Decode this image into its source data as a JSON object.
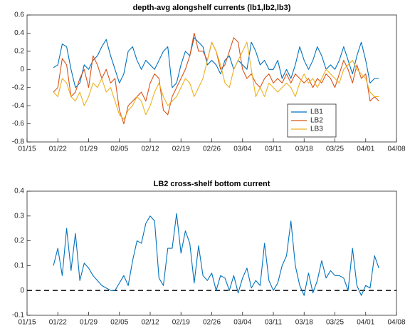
{
  "chart_data": [
    {
      "type": "line",
      "title": "depth-avg alongshelf currents (lb1,lb2,lb3)",
      "x": [
        21,
        22,
        23,
        24,
        25,
        26,
        27,
        28,
        29,
        30,
        31,
        32,
        33,
        34,
        35,
        36,
        37,
        38,
        39,
        40,
        41,
        42,
        43,
        44,
        45,
        46,
        47,
        48,
        49,
        50,
        51,
        52,
        53,
        54,
        55,
        56,
        57,
        58,
        59,
        60,
        61,
        62,
        63,
        64,
        65,
        66,
        67,
        68,
        69,
        70,
        71,
        72,
        73,
        74,
        75,
        76,
        77,
        78,
        79,
        80,
        81,
        82,
        83,
        84,
        85,
        86,
        87,
        88,
        89,
        90,
        91,
        92,
        93,
        94,
        95
      ],
      "series": [
        {
          "name": "LB1",
          "color": "#0072bd",
          "values": [
            0.02,
            0.05,
            0.28,
            0.25,
            0.0,
            -0.2,
            -0.15,
            0.05,
            0.0,
            0.1,
            0.15,
            0.25,
            0.33,
            0.15,
            0.0,
            -0.15,
            -0.05,
            0.2,
            0.25,
            0.1,
            0.0,
            0.1,
            0.05,
            0.0,
            0.1,
            0.2,
            0.25,
            -0.2,
            -0.15,
            0.05,
            0.2,
            0.15,
            0.35,
            0.3,
            0.25,
            0.05,
            0.1,
            0.05,
            -0.05,
            0.1,
            0.15,
            0.0,
            0.1,
            0.05,
            0.0,
            0.3,
            0.2,
            0.05,
            0.1,
            0.0,
            0.0,
            0.1,
            -0.1,
            0.0,
            -0.1,
            0.05,
            0.25,
            0.1,
            0.0,
            0.1,
            0.25,
            0.15,
            0.0,
            0.05,
            0.0,
            0.1,
            0.25,
            0.1,
            -0.05,
            0.15,
            0.3,
            0.1,
            -0.15,
            -0.1,
            -0.1
          ]
        },
        {
          "name": "LB2",
          "color": "#d95319",
          "values": [
            -0.25,
            -0.2,
            0.12,
            0.05,
            -0.3,
            -0.25,
            -0.1,
            0.0,
            -0.2,
            0.15,
            0.05,
            -0.1,
            0.0,
            -0.15,
            -0.1,
            -0.45,
            -0.6,
            -0.4,
            -0.35,
            -0.3,
            -0.25,
            -0.35,
            -0.15,
            -0.05,
            -0.1,
            -0.45,
            -0.5,
            -0.3,
            -0.2,
            -0.1,
            0.0,
            0.15,
            0.4,
            0.2,
            0.2,
            0.1,
            0.3,
            0.2,
            0.0,
            0.05,
            0.2,
            0.35,
            0.3,
            0.0,
            -0.1,
            -0.05,
            -0.15,
            -0.2,
            -0.1,
            -0.05,
            -0.15,
            -0.1,
            -0.15,
            -0.05,
            -0.15,
            -0.05,
            -0.1,
            -0.15,
            -0.1,
            -0.2,
            -0.1,
            -0.15,
            -0.05,
            -0.1,
            -0.2,
            -0.05,
            0.1,
            0.0,
            -0.15,
            0.05,
            -0.1,
            -0.05,
            -0.35,
            -0.3,
            -0.35
          ]
        },
        {
          "name": "LB3",
          "color": "#edb120",
          "values": [
            -0.25,
            -0.3,
            -0.1,
            -0.15,
            -0.3,
            -0.35,
            -0.25,
            -0.4,
            -0.3,
            -0.15,
            -0.2,
            -0.1,
            -0.25,
            -0.2,
            -0.35,
            -0.5,
            -0.55,
            -0.45,
            -0.4,
            -0.3,
            -0.35,
            -0.5,
            -0.4,
            -0.25,
            -0.15,
            -0.3,
            -0.4,
            -0.35,
            -0.3,
            -0.2,
            -0.1,
            -0.15,
            -0.3,
            -0.2,
            -0.1,
            0.1,
            0.3,
            0.2,
            0.05,
            -0.15,
            -0.2,
            0.0,
            0.1,
            0.2,
            0.3,
            0.0,
            -0.3,
            -0.2,
            -0.3,
            -0.15,
            -0.2,
            -0.25,
            -0.2,
            -0.15,
            -0.2,
            -0.3,
            -0.15,
            -0.05,
            -0.15,
            -0.1,
            -0.2,
            -0.1,
            0.0,
            -0.05,
            -0.1,
            -0.15,
            0.0,
            0.05,
            0.1,
            0.0,
            -0.05,
            -0.1,
            -0.25,
            -0.3,
            -0.3
          ]
        }
      ],
      "xlim": [
        15,
        99
      ],
      "xticks": [
        {
          "value": 15,
          "label": "01/15"
        },
        {
          "value": 22,
          "label": "01/22"
        },
        {
          "value": 29,
          "label": "01/29"
        },
        {
          "value": 36,
          "label": "02/05"
        },
        {
          "value": 43,
          "label": "02/12"
        },
        {
          "value": 50,
          "label": "02/19"
        },
        {
          "value": 57,
          "label": "02/26"
        },
        {
          "value": 64,
          "label": "03/04"
        },
        {
          "value": 71,
          "label": "03/11"
        },
        {
          "value": 78,
          "label": "03/18"
        },
        {
          "value": 85,
          "label": "03/25"
        },
        {
          "value": 92,
          "label": "04/01"
        },
        {
          "value": 99,
          "label": "04/08"
        }
      ],
      "ylim": [
        -0.8,
        0.6
      ],
      "yticks": [
        -0.8,
        -0.6,
        -0.4,
        -0.2,
        0,
        0.2,
        0.4,
        0.6
      ],
      "legend": "lower right"
    },
    {
      "type": "line",
      "title": "LB2 cross-shelf bottom current",
      "x": [
        21,
        22,
        23,
        24,
        25,
        26,
        27,
        28,
        29,
        30,
        31,
        32,
        33,
        34,
        35,
        36,
        37,
        38,
        39,
        40,
        41,
        42,
        43,
        44,
        45,
        46,
        47,
        48,
        49,
        50,
        51,
        52,
        53,
        54,
        55,
        56,
        57,
        58,
        59,
        60,
        61,
        62,
        63,
        64,
        65,
        66,
        67,
        68,
        69,
        70,
        71,
        72,
        73,
        74,
        75,
        76,
        77,
        78,
        79,
        80,
        81,
        82,
        83,
        84,
        85,
        86,
        87,
        88,
        89,
        90,
        91,
        92,
        93,
        94,
        95
      ],
      "series": [
        {
          "color": "#0072bd",
          "values": [
            0.1,
            0.17,
            0.06,
            0.25,
            0.08,
            0.23,
            0.04,
            0.11,
            0.09,
            0.06,
            0.04,
            0.02,
            0.01,
            0.0,
            0.0,
            0.03,
            0.06,
            0.02,
            0.12,
            0.2,
            0.19,
            0.27,
            0.3,
            0.28,
            0.05,
            0.02,
            0.17,
            0.17,
            0.31,
            0.15,
            0.24,
            0.19,
            0.03,
            0.18,
            0.06,
            0.04,
            0.07,
            0.0,
            0.06,
            0.05,
            0.0,
            0.06,
            -0.01,
            0.05,
            0.09,
            0.01,
            0.04,
            0.02,
            0.19,
            0.04,
            0.0,
            0.03,
            0.1,
            0.14,
            0.28,
            0.1,
            0.02,
            -0.02,
            0.07,
            -0.01,
            0.04,
            0.12,
            0.05,
            0.08,
            0.06,
            0.06,
            0.05,
            0.0,
            0.17,
            0.02,
            -0.02,
            0.02,
            0.01,
            0.14,
            0.09
          ]
        }
      ],
      "hline": 0,
      "xlim": [
        15,
        99
      ],
      "xticks": [
        {
          "value": 15,
          "label": "01/15"
        },
        {
          "value": 22,
          "label": "01/22"
        },
        {
          "value": 29,
          "label": "01/29"
        },
        {
          "value": 36,
          "label": "02/05"
        },
        {
          "value": 43,
          "label": "02/12"
        },
        {
          "value": 50,
          "label": "02/19"
        },
        {
          "value": 57,
          "label": "02/26"
        },
        {
          "value": 64,
          "label": "03/04"
        },
        {
          "value": 71,
          "label": "03/11"
        },
        {
          "value": 78,
          "label": "03/18"
        },
        {
          "value": 85,
          "label": "03/25"
        },
        {
          "value": 92,
          "label": "04/01"
        },
        {
          "value": 99,
          "label": "04/08"
        }
      ],
      "ylim": [
        -0.1,
        0.4
      ],
      "yticks": [
        -0.1,
        0,
        0.1,
        0.2,
        0.3,
        0.4
      ]
    }
  ]
}
